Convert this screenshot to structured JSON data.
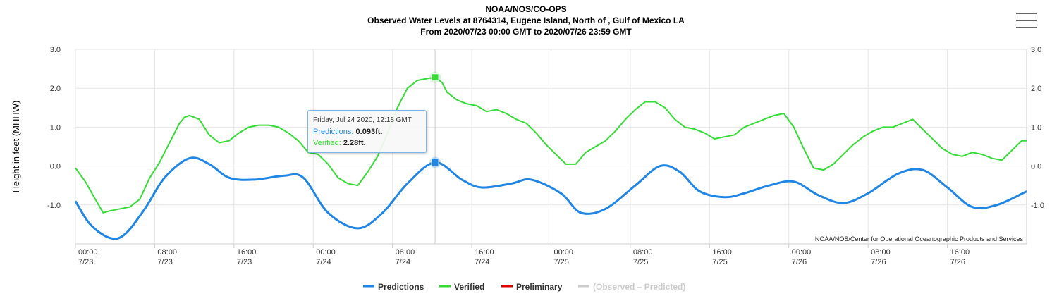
{
  "header": {
    "title": "NOAA/NOS/CO-OPS",
    "subtitle1": "Observed Water Levels at 8764314, Eugene Island, North of , Gulf of Mexico LA",
    "subtitle2": "From 2020/07/23 00:00 GMT to 2020/07/26 23:59 GMT"
  },
  "menu": {
    "icon": "hamburger-menu-icon"
  },
  "credit": "NOAA/NOS/Center for Operational Oceanographic Products and Services",
  "tooltip": {
    "header": "Friday, Jul 24 2020, 12:18 GMT",
    "pred_name": "Predictions:",
    "pred_value": "0.093ft.",
    "ver_name": "Verified:",
    "ver_value": "2.28ft."
  },
  "chart_data": {
    "type": "line",
    "title": "NOAA/NOS/CO-OPS",
    "ylabel": "Height in feet (MHHW)",
    "ylim": [
      -2.0,
      3.0
    ],
    "yticks": [
      {
        "value": 3.0,
        "label": "3.0"
      },
      {
        "value": 2.0,
        "label": "2.0"
      },
      {
        "value": 1.0,
        "label": "1.0"
      },
      {
        "value": 0.0,
        "label": "0.0"
      },
      {
        "value": -1.0,
        "label": "-1.0"
      }
    ],
    "xlim_hours": [
      0,
      96
    ],
    "xticks": [
      {
        "hour": 0,
        "time": "00:00",
        "date": "7/23"
      },
      {
        "hour": 8,
        "time": "08:00",
        "date": "7/23"
      },
      {
        "hour": 16,
        "time": "16:00",
        "date": "7/23"
      },
      {
        "hour": 24,
        "time": "00:00",
        "date": "7/24"
      },
      {
        "hour": 32,
        "time": "08:00",
        "date": "7/24"
      },
      {
        "hour": 40,
        "time": "16:00",
        "date": "7/24"
      },
      {
        "hour": 48,
        "time": "00:00",
        "date": "7/25"
      },
      {
        "hour": 56,
        "time": "08:00",
        "date": "7/25"
      },
      {
        "hour": 64,
        "time": "16:00",
        "date": "7/25"
      },
      {
        "hour": 72,
        "time": "00:00",
        "date": "7/26"
      },
      {
        "hour": 80,
        "time": "08:00",
        "date": "7/26"
      },
      {
        "hour": 88,
        "time": "16:00",
        "date": "7/26"
      }
    ],
    "grid": true,
    "legend_position": "bottom-center",
    "highlight_hour": 36.3,
    "series": [
      {
        "name": "Predictions",
        "color": "#1f86e6",
        "x_hours": [
          0,
          1.5,
          3.5,
          5,
          7,
          9,
          11.5,
          13.5,
          15.5,
          18,
          21,
          23,
          25.5,
          28.5,
          31,
          33.5,
          36.3,
          39,
          41,
          44,
          46,
          49,
          51,
          53.5,
          56.5,
          59,
          61,
          63,
          65.5,
          67.5,
          70,
          72.5,
          75,
          77.5,
          80,
          83,
          85.5,
          88,
          90.5,
          93,
          96
        ],
        "values": [
          -0.9,
          -1.5,
          -1.85,
          -1.75,
          -1.1,
          -0.3,
          0.2,
          0.05,
          -0.3,
          -0.35,
          -0.25,
          -0.3,
          -1.2,
          -1.6,
          -1.2,
          -0.45,
          0.093,
          -0.35,
          -0.55,
          -0.45,
          -0.35,
          -0.7,
          -1.2,
          -1.1,
          -0.5,
          0.0,
          -0.15,
          -0.65,
          -0.8,
          -0.7,
          -0.5,
          -0.4,
          -0.75,
          -0.95,
          -0.7,
          -0.2,
          -0.1,
          -0.55,
          -1.05,
          -1.0,
          -0.65
        ]
      },
      {
        "name": "Verified",
        "color": "#33dd33",
        "x_hours": [
          0,
          1,
          2,
          2.8,
          3.5,
          4.5,
          5.5,
          6.5,
          7.5,
          8.5,
          9.5,
          10.5,
          11,
          11.5,
          12.5,
          13.5,
          14.5,
          15.5,
          16.5,
          17.5,
          18.5,
          19.5,
          20.5,
          21.5,
          22.5,
          23.5,
          24.5,
          25.5,
          26.5,
          27.5,
          28.5,
          29.5,
          30.5,
          31.5,
          32.5,
          33.5,
          34.5,
          35.5,
          36.3,
          37,
          37.5,
          38.5,
          39.5,
          40.5,
          41.5,
          42.5,
          43.5,
          44.5,
          45.5,
          46.5,
          47.5,
          48.5,
          49.5,
          50.5,
          51.5,
          52.5,
          53.5,
          54.5,
          55.5,
          56.5,
          57.5,
          58.5,
          59.5,
          60.5,
          61.5,
          62.5,
          63.5,
          64.5,
          65.5,
          66.5,
          67.5,
          68.5,
          69.5,
          70.5,
          71.5,
          72.5,
          73.5,
          74.5,
          75.5,
          76.5,
          77.5,
          78.5,
          79.5,
          80.5,
          81.5,
          82.5,
          83.5,
          84.5,
          85.5,
          86.5,
          87.5,
          88.5,
          89.5,
          90.5,
          91.5,
          92.5,
          93.5,
          94.5,
          95.5,
          96
        ],
        "values": [
          -0.05,
          -0.4,
          -0.85,
          -1.2,
          -1.15,
          -1.1,
          -1.05,
          -0.85,
          -0.3,
          0.1,
          0.6,
          1.1,
          1.25,
          1.3,
          1.2,
          0.8,
          0.6,
          0.65,
          0.85,
          1.0,
          1.05,
          1.05,
          1.0,
          0.85,
          0.65,
          0.35,
          0.3,
          0.05,
          -0.3,
          -0.45,
          -0.5,
          -0.15,
          0.25,
          0.85,
          1.5,
          2.0,
          2.2,
          2.25,
          2.28,
          2.15,
          1.9,
          1.7,
          1.6,
          1.55,
          1.4,
          1.45,
          1.35,
          1.2,
          1.1,
          0.85,
          0.55,
          0.3,
          0.05,
          0.05,
          0.35,
          0.5,
          0.65,
          0.9,
          1.2,
          1.45,
          1.65,
          1.65,
          1.5,
          1.2,
          1.0,
          0.95,
          0.85,
          0.7,
          0.75,
          0.8,
          1.0,
          1.1,
          1.2,
          1.3,
          1.35,
          1.0,
          0.45,
          -0.05,
          -0.1,
          0.05,
          0.3,
          0.55,
          0.75,
          0.9,
          1.0,
          1.0,
          1.1,
          1.2,
          0.95,
          0.7,
          0.45,
          0.3,
          0.25,
          0.35,
          0.3,
          0.2,
          0.15,
          0.4,
          0.65,
          0.65
        ]
      },
      {
        "name": "Preliminary",
        "color": "#dd0000",
        "x_hours": [],
        "values": []
      },
      {
        "name": "(Observed – Predicted)",
        "color": "#cccccc",
        "x_hours": [],
        "values": [],
        "hidden": true
      }
    ]
  }
}
